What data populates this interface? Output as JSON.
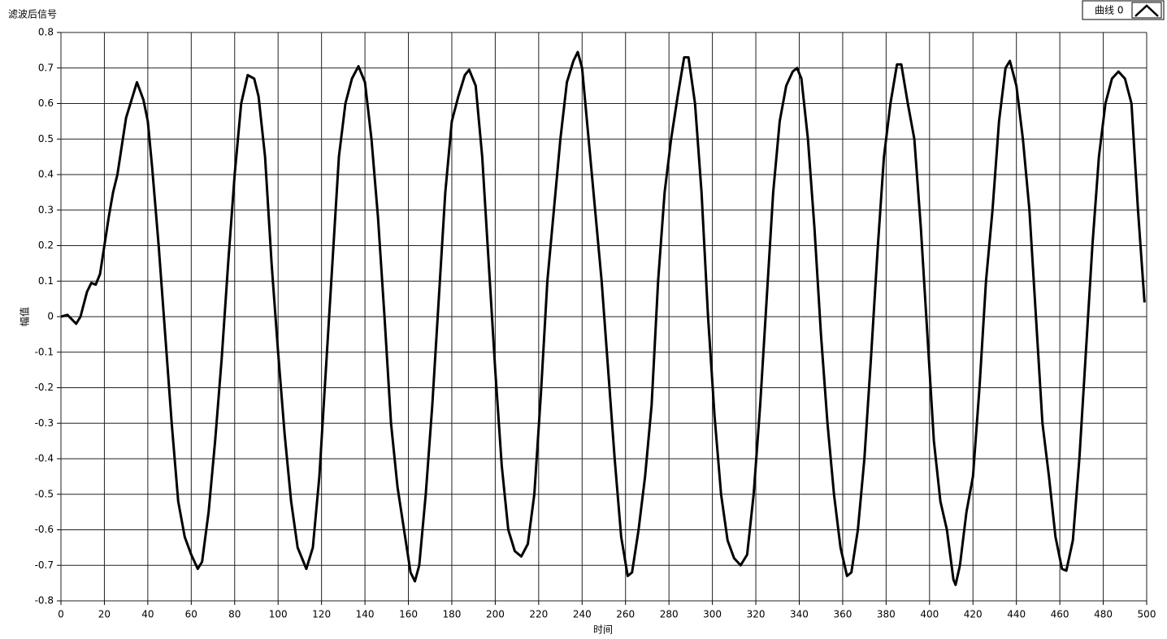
{
  "chart_data": {
    "type": "line",
    "title": "滤波后信号",
    "x_label": "时间",
    "y_label": "幅值",
    "x": [
      0,
      3,
      7,
      9,
      12,
      14,
      16,
      18,
      20,
      22,
      24,
      26,
      28,
      30,
      32,
      35,
      38,
      40,
      42,
      45,
      48,
      51,
      54,
      57,
      60,
      63,
      65,
      68,
      71,
      74,
      77,
      80,
      83,
      86,
      89,
      91,
      94,
      97,
      100,
      103,
      106,
      109,
      113,
      116,
      119,
      122,
      125,
      128,
      131,
      134,
      137,
      140,
      143,
      146,
      149,
      152,
      155,
      158,
      161,
      163,
      165,
      168,
      171,
      174,
      177,
      180,
      183,
      186,
      188,
      191,
      194,
      197,
      200,
      203,
      206,
      209,
      212,
      215,
      218,
      221,
      224,
      227,
      230,
      233,
      236,
      238,
      240,
      243,
      246,
      249,
      252,
      255,
      258,
      261,
      263,
      266,
      269,
      272,
      275,
      278,
      281,
      284,
      287,
      289,
      292,
      295,
      298,
      301,
      304,
      307,
      310,
      313,
      316,
      319,
      322,
      325,
      328,
      331,
      334,
      337,
      339,
      341,
      344,
      347,
      350,
      353,
      356,
      359,
      362,
      364,
      367,
      370,
      373,
      376,
      379,
      382,
      385,
      387,
      390,
      393,
      396,
      399,
      402,
      405,
      408,
      411,
      412,
      414,
      417,
      420,
      423,
      426,
      429,
      432,
      435,
      437,
      440,
      443,
      446,
      449,
      452,
      455,
      458,
      461,
      463,
      466,
      469,
      472,
      475,
      478,
      481,
      484,
      487,
      490,
      493,
      496,
      499
    ],
    "series": [
      {
        "name": "曲线 0",
        "color": "#000000",
        "values": [
          0,
          0.005,
          -0.02,
          0,
          0.07,
          0.095,
          0.09,
          0.12,
          0.2,
          0.28,
          0.35,
          0.4,
          0.48,
          0.56,
          0.6,
          0.66,
          0.61,
          0.55,
          0.42,
          0.2,
          -0.05,
          -0.3,
          -0.52,
          -0.62,
          -0.67,
          -0.71,
          -0.69,
          -0.55,
          -0.35,
          -0.12,
          0.15,
          0.4,
          0.6,
          0.68,
          0.67,
          0.62,
          0.45,
          0.15,
          -0.1,
          -0.33,
          -0.52,
          -0.65,
          -0.71,
          -0.65,
          -0.45,
          -0.15,
          0.15,
          0.45,
          0.6,
          0.67,
          0.705,
          0.66,
          0.5,
          0.28,
          0,
          -0.3,
          -0.48,
          -0.6,
          -0.72,
          -0.745,
          -0.7,
          -0.5,
          -0.25,
          0.05,
          0.35,
          0.55,
          0.62,
          0.68,
          0.695,
          0.65,
          0.45,
          0.15,
          -0.15,
          -0.42,
          -0.6,
          -0.66,
          -0.675,
          -0.64,
          -0.5,
          -0.22,
          0.1,
          0.3,
          0.5,
          0.66,
          0.72,
          0.745,
          0.7,
          0.5,
          0.3,
          0.1,
          -0.15,
          -0.4,
          -0.62,
          -0.73,
          -0.72,
          -0.6,
          -0.45,
          -0.25,
          0.1,
          0.35,
          0.5,
          0.62,
          0.73,
          0.73,
          0.6,
          0.35,
          0,
          -0.28,
          -0.5,
          -0.63,
          -0.68,
          -0.7,
          -0.67,
          -0.5,
          -0.25,
          0.05,
          0.35,
          0.55,
          0.65,
          0.69,
          0.7,
          0.67,
          0.5,
          0.25,
          -0.05,
          -0.3,
          -0.5,
          -0.65,
          -0.73,
          -0.72,
          -0.6,
          -0.4,
          -0.12,
          0.18,
          0.45,
          0.6,
          0.71,
          0.71,
          0.6,
          0.5,
          0.25,
          -0.05,
          -0.35,
          -0.52,
          -0.6,
          -0.74,
          -0.755,
          -0.7,
          -0.55,
          -0.45,
          -0.2,
          0.1,
          0.3,
          0.55,
          0.7,
          0.72,
          0.65,
          0.5,
          0.3,
          0,
          -0.3,
          -0.45,
          -0.62,
          -0.71,
          -0.715,
          -0.63,
          -0.4,
          -0.1,
          0.2,
          0.45,
          0.6,
          0.67,
          0.69,
          0.67,
          0.6,
          0.3,
          0.04
        ]
      }
    ],
    "xlim": [
      0,
      500
    ],
    "xticks": [
      0,
      20,
      40,
      60,
      80,
      100,
      120,
      140,
      160,
      180,
      200,
      220,
      240,
      260,
      280,
      300,
      320,
      340,
      360,
      380,
      400,
      420,
      440,
      460,
      480,
      500
    ],
    "ylim": [
      -0.8,
      0.8
    ],
    "yticks": [
      0.8,
      0.7,
      0.6,
      0.5,
      0.4,
      0.3,
      0.2,
      0.1,
      0,
      -0.1,
      -0.2,
      -0.3,
      -0.4,
      -0.5,
      -0.6,
      -0.7,
      -0.8
    ],
    "grid": true
  }
}
